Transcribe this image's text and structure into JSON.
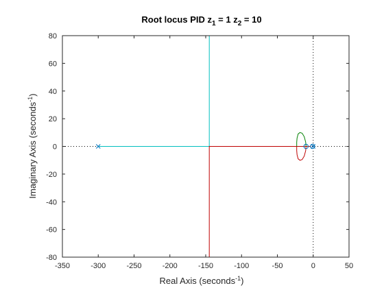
{
  "chart_data": {
    "type": "line",
    "title": {
      "main": "Root locus PID z",
      "sub1": "1",
      "mid": " = 1  z",
      "sub2": "2",
      "end": " = 10"
    },
    "xlabel": {
      "main": "Real Axis (seconds",
      "sup": "-1",
      "end": ")"
    },
    "ylabel": {
      "main": "Imaginary Axis (seconds",
      "sup": "-1",
      "end": ")"
    },
    "xlim": [
      -350,
      50
    ],
    "ylim": [
      -80,
      80
    ],
    "xticks": [
      -350,
      -300,
      -250,
      -200,
      -150,
      -100,
      -50,
      0,
      50
    ],
    "yticks": [
      -80,
      -60,
      -40,
      -20,
      0,
      20,
      40,
      60,
      80
    ],
    "grid": false,
    "poles": [
      [
        -300,
        0
      ],
      [
        0,
        0
      ]
    ],
    "zeros": [
      [
        -1,
        0
      ],
      [
        -10,
        0
      ]
    ],
    "series": [
      {
        "color": "#00bfbf",
        "points": [
          [
            -300,
            0
          ],
          [
            -145,
            0
          ],
          [
            -145,
            80
          ]
        ]
      },
      {
        "color": "#bf0000",
        "points": [
          [
            -3,
            0
          ],
          [
            -145,
            0
          ],
          [
            -145,
            -80
          ]
        ]
      },
      {
        "color": "#bf0000",
        "points": [
          [
            -10,
            0
          ],
          [
            -10.5,
            -3
          ],
          [
            -12.5,
            -7
          ],
          [
            -15.5,
            -9.5
          ],
          [
            -18.5,
            -10
          ],
          [
            -21,
            -9
          ],
          [
            -22.5,
            -6
          ],
          [
            -23,
            -3
          ],
          [
            -23,
            0
          ]
        ]
      },
      {
        "color": "#008000",
        "points": [
          [
            -10,
            0
          ],
          [
            -10.5,
            3
          ],
          [
            -12.5,
            7
          ],
          [
            -15.5,
            9.5
          ],
          [
            -18.5,
            10
          ],
          [
            -21,
            9
          ],
          [
            -22.5,
            6
          ],
          [
            -23,
            3
          ],
          [
            -23,
            0
          ]
        ]
      },
      {
        "color": "#0000ff",
        "points": [
          [
            0,
            0
          ],
          [
            -1,
            0
          ]
        ]
      }
    ],
    "colors": {
      "axis": "#262626",
      "reference": "#000000",
      "marker": "#0072bd"
    }
  }
}
